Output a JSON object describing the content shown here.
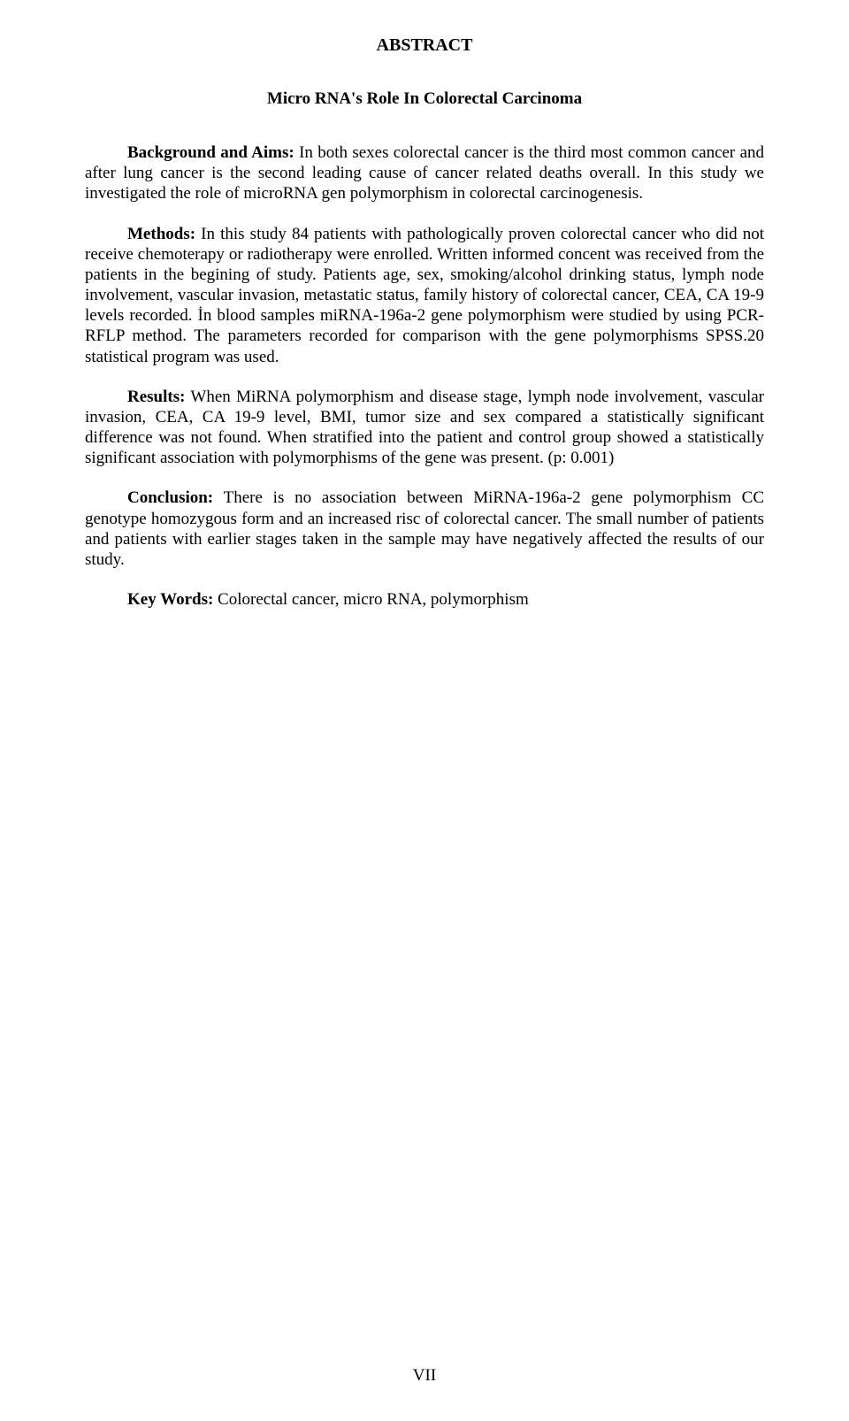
{
  "title": "ABSTRACT",
  "subtitle": "Micro RNA's Role In Colorectal Carcinoma",
  "sections": {
    "background": {
      "heading": "Background and Aims:",
      "text": "In both sexes colorectal cancer is the third most common cancer and after lung cancer is the second leading cause of cancer related deaths overall. In this study we investigated the role of microRNA gen polymorphism in colorectal carcinogenesis."
    },
    "methods": {
      "heading": "Methods:",
      "text": "In this study 84 patients with pathologically proven colorectal cancer who did not receive chemoterapy or radiotherapy were enrolled. Written informed concent was received from the patients in the begining of study. Patients age, sex, smoking/alcohol drinking status, lymph node involvement, vascular invasion, metastatic status, family history of colorectal cancer, CEA, CA 19-9 levels recorded. İn blood samples miRNA-196a-2 gene polymorphism were studied by using PCR-RFLP method. The parameters recorded for comparison with the gene polymorphisms SPSS.20 statistical program was used."
    },
    "results": {
      "heading": "Results:",
      "text": "When MiRNA polymorphism and disease stage, lymph node involvement, vascular invasion, CEA, CA 19-9 level, BMI, tumor size and sex compared a statistically significant difference was not found. When stratified into the patient and control group showed a statistically significant association with polymorphisms of the gene was present. (p: 0.001)"
    },
    "conclusion": {
      "heading": "Conclusion:",
      "text": "There is no association between MiRNA-196a-2 gene polymorphism CC genotype homozygous form and an increased risc of colorectal cancer. The small number of patients and patients with earlier stages taken in the sample may have negatively affected the results of our study."
    },
    "keywords": {
      "heading": "Key Words:",
      "text": "Colorectal cancer, micro RNA, polymorphism"
    }
  },
  "pageNumber": "VII"
}
